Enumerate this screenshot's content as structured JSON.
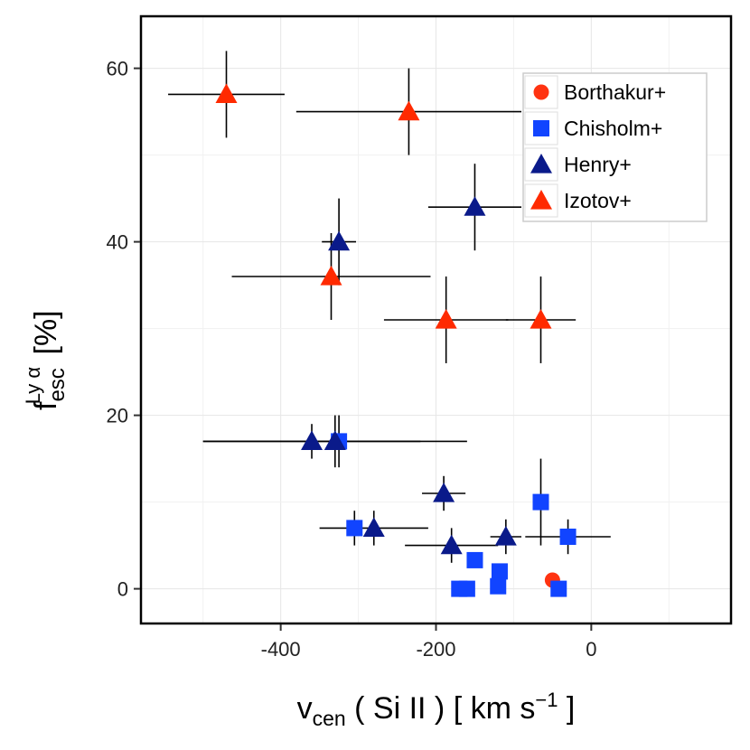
{
  "chart_data": {
    "type": "scatter",
    "xlabel": {
      "main": "v",
      "sub": "cen",
      "rest": " ( Si II ) [ km s",
      "sup": "−1",
      "end": " ]"
    },
    "ylabel": {
      "main": "f",
      "sub": "esc",
      "sup": "Ly α",
      "rest": " [%]"
    },
    "xlim": [
      -580,
      180
    ],
    "ylim": [
      -4,
      66
    ],
    "xticks": [
      -400,
      -200,
      0
    ],
    "xtick_labels": [
      "-400",
      "-200",
      "0"
    ],
    "yticks": [
      0,
      20,
      40,
      60
    ],
    "ytick_labels": [
      "0",
      "20",
      "40",
      "60"
    ],
    "grid": true,
    "legend_position": "top-right",
    "series": [
      {
        "name": "Borthakur+",
        "marker": "circle",
        "color": "#ff3311",
        "points": [
          {
            "x": -50,
            "y": 1
          }
        ]
      },
      {
        "name": "Chisholm+",
        "marker": "square",
        "color": "#1144ff",
        "points": [
          {
            "x": -325,
            "y": 17,
            "yerr": 3
          },
          {
            "x": -305,
            "y": 7,
            "yerr": 2
          },
          {
            "x": -150,
            "y": 3.3
          },
          {
            "x": -170,
            "y": 0
          },
          {
            "x": -160,
            "y": 0
          },
          {
            "x": -118,
            "y": 2
          },
          {
            "x": -120,
            "y": 0.3
          },
          {
            "x": -65,
            "y": 10,
            "yerr": 5,
            "xerr": 5
          },
          {
            "x": -30,
            "y": 6,
            "yerr": 2,
            "xerr": 55
          },
          {
            "x": -42,
            "y": 0
          }
        ]
      },
      {
        "name": "Henry+",
        "marker": "triangle",
        "color": "#0a1a8a",
        "points": [
          {
            "x": -325,
            "y": 40,
            "yerr": 5,
            "xerr": 22
          },
          {
            "x": -150,
            "y": 44,
            "yerr": 5,
            "xerr": 60
          },
          {
            "x": -360,
            "y": 17,
            "yerr": 2,
            "xerr": 140
          },
          {
            "x": -330,
            "y": 17,
            "yerr": 3,
            "xerr": 170
          },
          {
            "x": -190,
            "y": 11,
            "yerr": 2,
            "xerr": 28
          },
          {
            "x": -280,
            "y": 7,
            "yerr": 2,
            "xerr": 70
          },
          {
            "x": -180,
            "y": 5,
            "yerr": 2,
            "xerr": 60
          },
          {
            "x": -110,
            "y": 6,
            "yerr": 2,
            "xerr": 20
          }
        ]
      },
      {
        "name": "Izotov+",
        "marker": "triangle",
        "color": "#ff2a00",
        "points": [
          {
            "x": -470,
            "y": 57,
            "yerr": 5,
            "xerr": 75
          },
          {
            "x": -235,
            "y": 55,
            "yerr": 5,
            "xerr": 145
          },
          {
            "x": -335,
            "y": 36,
            "yerr": 5,
            "xerr": 128
          },
          {
            "x": -187,
            "y": 31,
            "yerr": 5,
            "xerr": 80
          },
          {
            "x": -65,
            "y": 31,
            "yerr": 5,
            "xerr": 45
          }
        ]
      }
    ]
  }
}
